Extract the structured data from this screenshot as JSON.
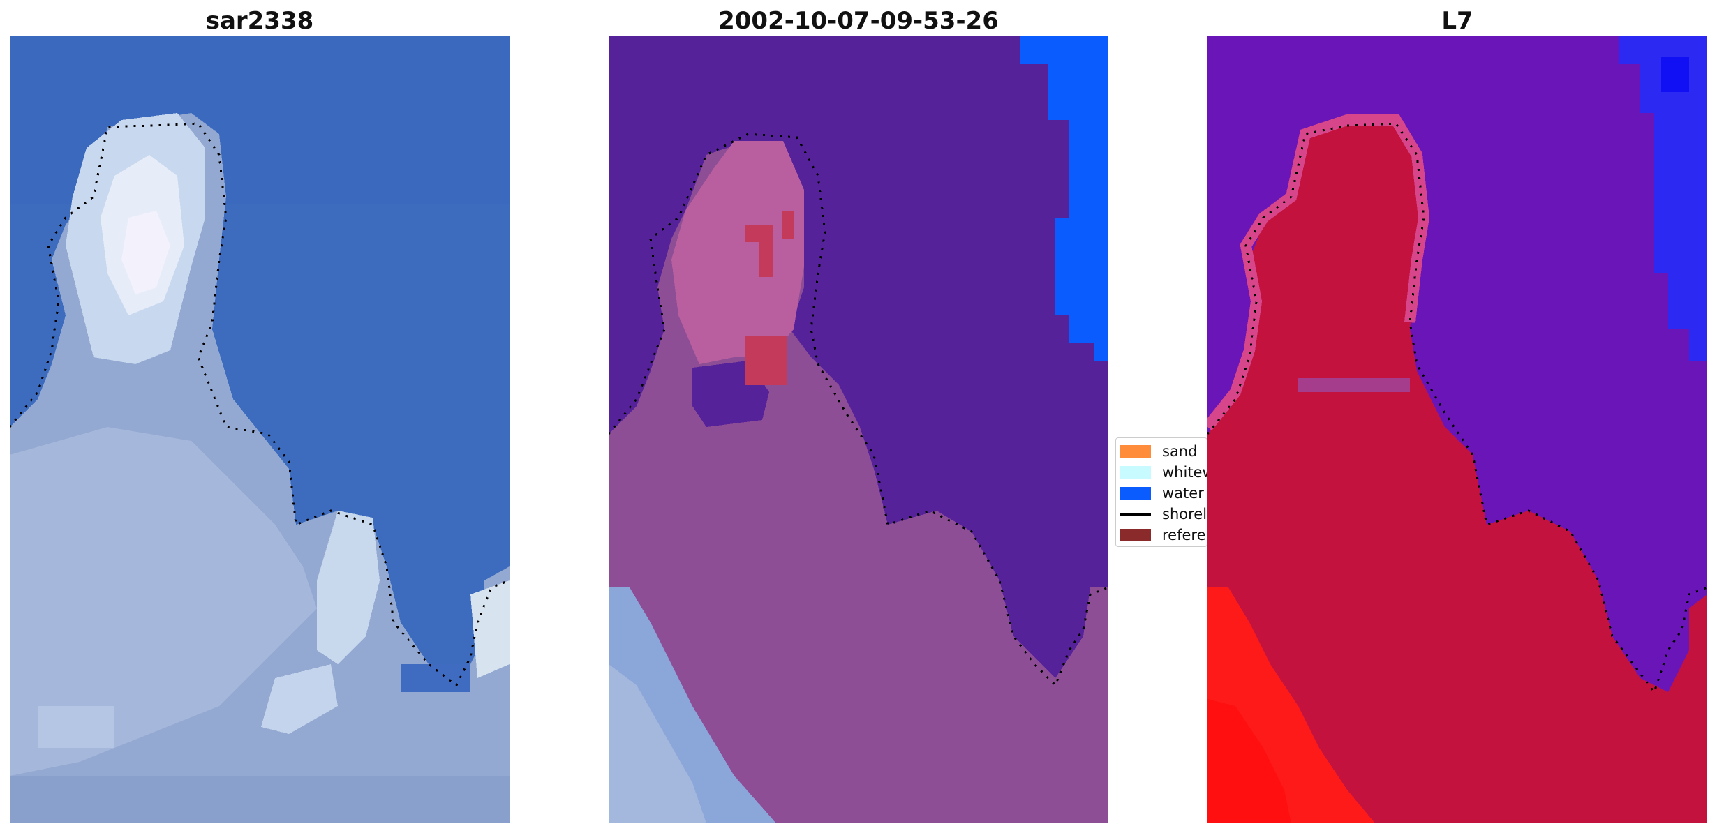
{
  "panels": [
    {
      "title": "sar2338"
    },
    {
      "title": "2002-10-07-09-53-26"
    },
    {
      "title": "L7"
    }
  ],
  "legend": {
    "items": [
      {
        "label": "sand",
        "color": "#ff8c3a"
      },
      {
        "label": "whitewater",
        "color": "#c8fbff"
      },
      {
        "label": "water",
        "color": "#0a5cff"
      },
      {
        "label": "shoreline",
        "color": "#000000"
      },
      {
        "label": "reference shoreline",
        "color": "#8b2a2a"
      }
    ]
  },
  "colors": {
    "rgb_water": "#3f6fc0",
    "rgb_land": "#9fb3d6",
    "classified_water": "#56229a",
    "classified_land": "#8e4d95",
    "index_water": "#6a15b8",
    "index_land": "#c3123e",
    "index_bright": "#ff1a1a"
  }
}
